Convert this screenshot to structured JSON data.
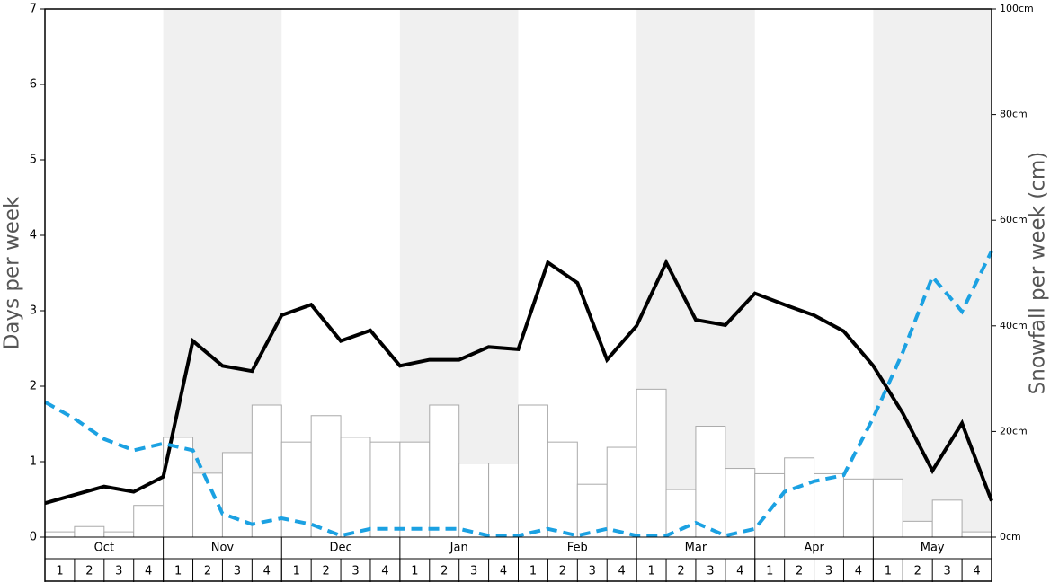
{
  "chart_data": {
    "type": "bar",
    "y_label": "Days per week",
    "y2_label": "Snowfall per week (cm)",
    "ylim": [
      0,
      7
    ],
    "yticks": [
      0,
      1,
      2,
      3,
      4,
      5,
      6,
      7
    ],
    "y2lim": [
      0,
      100
    ],
    "y2ticks": [
      {
        "value": 0,
        "label": "0cm"
      },
      {
        "value": 20,
        "label": "20cm"
      },
      {
        "value": 40,
        "label": "40cm"
      },
      {
        "value": 60,
        "label": "60cm"
      },
      {
        "value": 80,
        "label": "80cm"
      },
      {
        "value": 100,
        "label": "100cm"
      }
    ],
    "months": [
      {
        "name": "Oct",
        "weeks": [
          "1",
          "2",
          "3",
          "4"
        ]
      },
      {
        "name": "Nov",
        "weeks": [
          "1",
          "2",
          "3",
          "4"
        ]
      },
      {
        "name": "Dec",
        "weeks": [
          "1",
          "2",
          "3",
          "4"
        ]
      },
      {
        "name": "Jan",
        "weeks": [
          "1",
          "2",
          "3",
          "4"
        ]
      },
      {
        "name": "Feb",
        "weeks": [
          "1",
          "2",
          "3",
          "4"
        ]
      },
      {
        "name": "Mar",
        "weeks": [
          "1",
          "2",
          "3",
          "4"
        ]
      },
      {
        "name": "Apr",
        "weeks": [
          "1",
          "2",
          "3",
          "4"
        ]
      },
      {
        "name": "May",
        "weeks": [
          "1",
          "2",
          "3",
          "4"
        ]
      }
    ],
    "shade_color": "#f0f0f0",
    "bar_series": {
      "axis": "y2",
      "color": "#ffffff",
      "edge_color": "#aaaaaa",
      "values": [
        1,
        2,
        1,
        6,
        18.9,
        12.1,
        16,
        25,
        18,
        23,
        18.9,
        18,
        18,
        25,
        14,
        14,
        25,
        18,
        10,
        17,
        28,
        9,
        21,
        13,
        12,
        15,
        12,
        11,
        11,
        3,
        7,
        1
      ]
    },
    "line_series": [
      {
        "axis": "y",
        "color": "#000000",
        "dashed": false,
        "values": [
          0.45,
          0.56,
          0.67,
          0.6,
          0.8,
          2.6,
          2.27,
          2.2,
          2.94,
          3.08,
          2.6,
          2.74,
          2.27,
          2.35,
          2.35,
          2.52,
          2.49,
          3.64,
          3.37,
          2.35,
          2.8,
          3.64,
          2.88,
          2.81,
          3.23,
          3.08,
          2.94,
          2.73,
          2.27,
          1.64,
          0.88,
          1.51,
          0.48
        ]
      },
      {
        "axis": "y",
        "color": "#1ba1e2",
        "dashed": true,
        "values": [
          1.79,
          1.57,
          1.3,
          1.15,
          1.24,
          1.15,
          0.31,
          0.17,
          0.25,
          0.17,
          0.02,
          0.11,
          0.11,
          0.11,
          0.11,
          0.02,
          0.02,
          0.11,
          0.02,
          0.11,
          0.02,
          0.02,
          0.19,
          0.02,
          0.11,
          0.6,
          0.74,
          0.82,
          1.58,
          2.45,
          3.45,
          2.99,
          3.79
        ]
      }
    ]
  }
}
